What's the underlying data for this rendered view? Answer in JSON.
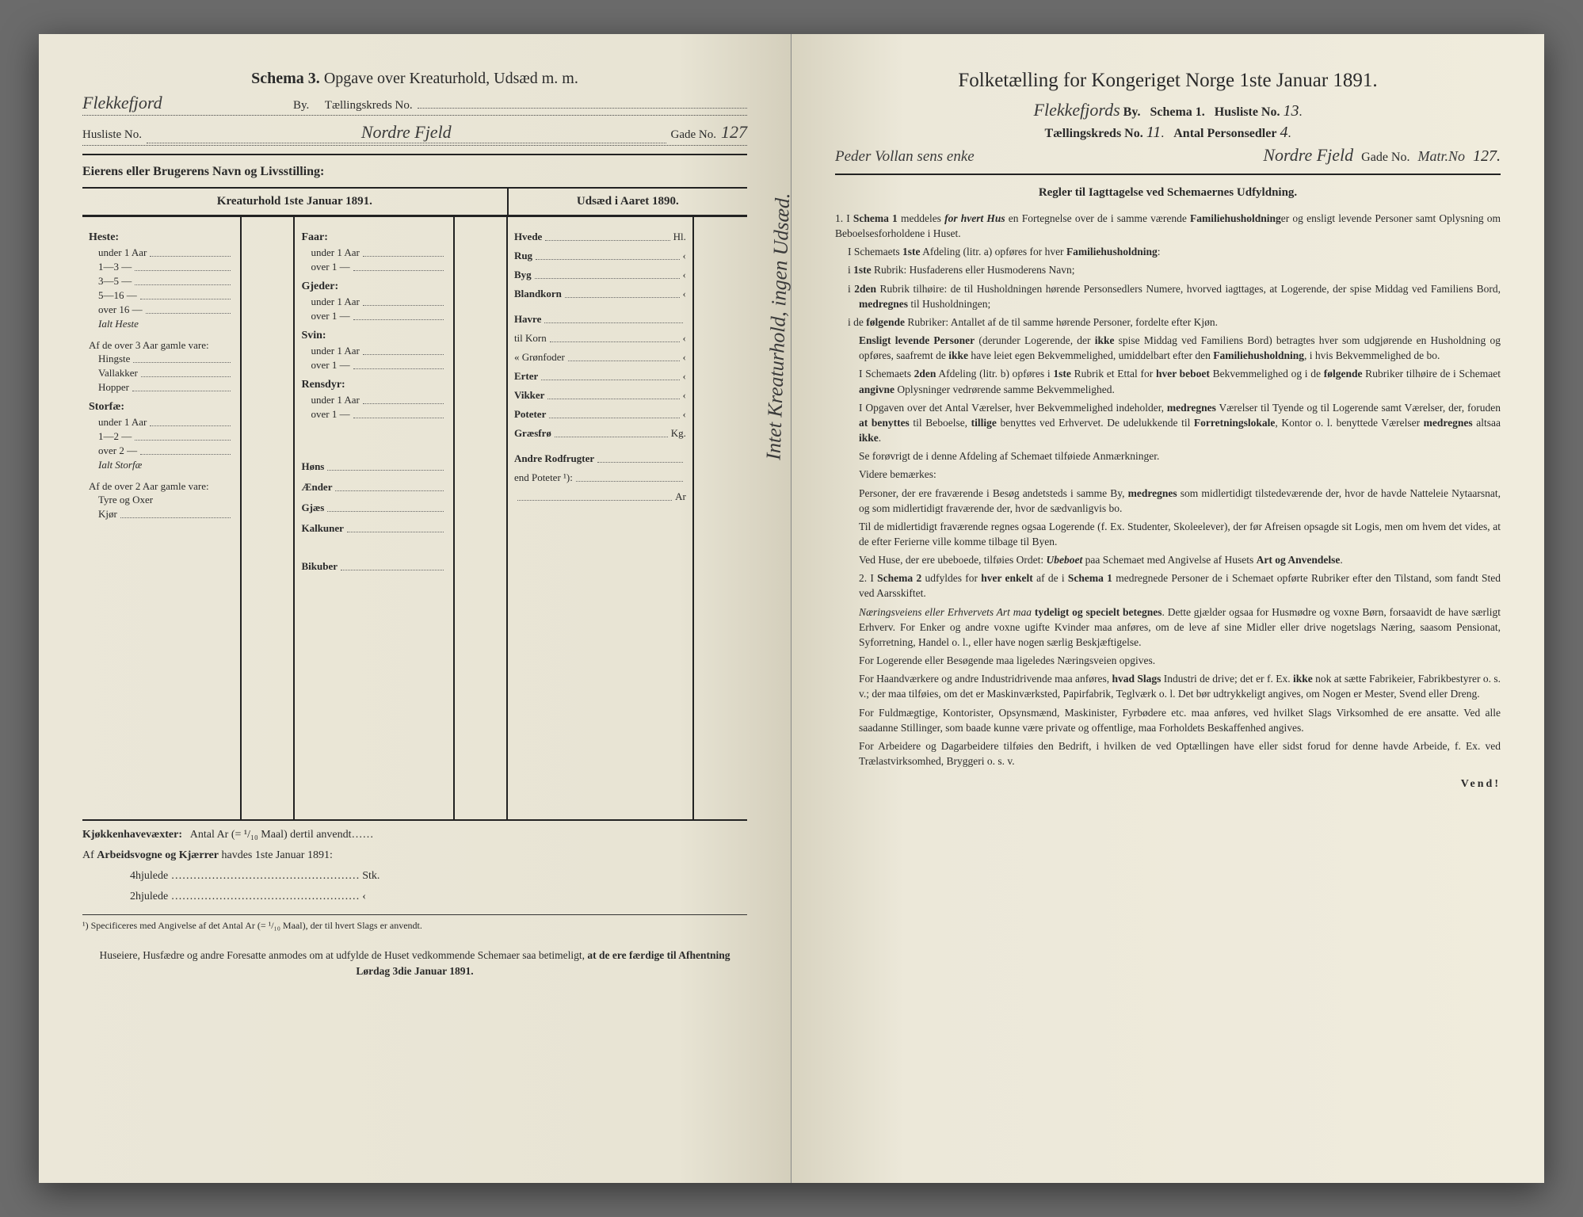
{
  "left": {
    "schemaLabel": "Schema 3.",
    "schemaTitle": "Opgave over Kreaturhold, Udsæd m. m.",
    "hwCity": "Flekkefjord",
    "byLabel": "By.",
    "tkLabel": "Tællingskreds No.",
    "huslisteLabel": "Husliste No.",
    "hwStreet": "Nordre Fjeld",
    "gadeLabel": "Gade No.",
    "hwGadeNo": "127",
    "ownerLabel": "Eierens eller Brugerens Navn og Livsstilling:",
    "headerKreatur": "Kreaturhold 1ste Januar 1891.",
    "headerUdsaed": "Udsæd i Aaret 1890.",
    "verticalNote": "Intet Kreaturhold, ingen Udsæd.",
    "heste": {
      "title": "Heste:",
      "rows": [
        "under 1 Aar",
        "1—3 —",
        "3—5 —",
        "5—16 —",
        "over 16 —"
      ],
      "ialt": "Ialt Heste",
      "subTitle": "Af de over 3 Aar gamle vare:",
      "subRows": [
        "Hingste",
        "Vallakker",
        "Hopper"
      ]
    },
    "storfae": {
      "title": "Storfæ:",
      "rows": [
        "under 1 Aar",
        "1—2 —",
        "over 2 —"
      ],
      "ialt": "Ialt Storfæ",
      "subTitle": "Af de over 2 Aar gamle vare:",
      "subRows": [
        "Tyre og Oxer",
        "Kjør"
      ]
    },
    "faar": {
      "title": "Faar:",
      "rows": [
        "under 1 Aar",
        "over 1 —"
      ]
    },
    "gjeder": {
      "title": "Gjeder:",
      "rows": [
        "under 1 Aar",
        "over 1 —"
      ]
    },
    "svin": {
      "title": "Svin:",
      "rows": [
        "under 1 Aar",
        "over 1 —"
      ]
    },
    "rensdyr": {
      "title": "Rensdyr:",
      "rows": [
        "under 1 Aar",
        "over 1 —"
      ]
    },
    "poultry": [
      "Høns",
      "Ænder",
      "Gjæs",
      "Kalkuner",
      "",
      "Bikuber"
    ],
    "udsaed": {
      "rows": [
        {
          "label": "Hvede",
          "unit": "Hl."
        },
        {
          "label": "Rug",
          "unit": "‹"
        },
        {
          "label": "Byg",
          "unit": "‹"
        },
        {
          "label": "Blandkorn",
          "unit": "‹"
        },
        {
          "label": "Havre",
          "unit": ""
        },
        {
          "label": "  til Korn",
          "unit": "‹"
        },
        {
          "label": "« Grønfoder",
          "unit": "‹"
        },
        {
          "label": "Erter",
          "unit": "‹"
        },
        {
          "label": "Vikker",
          "unit": "‹"
        },
        {
          "label": "Poteter",
          "unit": "‹"
        },
        {
          "label": "Græsfrø",
          "unit": "Kg."
        },
        {
          "label": "Andre Rodfrugter",
          "unit": ""
        },
        {
          "label": "  end Poteter ¹):",
          "unit": ""
        },
        {
          "label": "",
          "unit": "Ar"
        }
      ]
    },
    "kjokkenLine": "Kjøkkenhavevæxter:   Antal Ar (= ¹/₁₀ Maal) dertil anvendt……",
    "arbeidsLine": "Af Arbeidsvogne og Kjærrer havdes 1ste Januar 1891:",
    "wheel4": "4hjulede  ……………………………………………  Stk.",
    "wheel2": "2hjulede  ……………………………………………   ‹",
    "footnote": "¹) Specificeres med Angivelse af det Antal Ar (= ¹/₁₀ Maal), der til hvert Slags er anvendt.",
    "instruction1": "Huseiere, Husfædre og andre Foresatte anmodes om at udfylde de Huset vedkommende Schemaer saa betimeligt,",
    "instruction2": "at de ere færdige til Afhentning Lørdag 3die Januar 1891."
  },
  "right": {
    "title": "Folketælling for Kongeriget Norge 1ste Januar 1891.",
    "hwCity": "Flekkefjords",
    "byLabel": "By.",
    "schemaLabel": "Schema 1.",
    "huslisteLabel": "Husliste No.",
    "hwHusliste": "13",
    "tkLabel": "Tællingskreds No.",
    "hwTk": "11",
    "antalLabel": "Antal Personsedler",
    "hwAntal": "4",
    "hwOwner": "Peder Vollan sens enke",
    "hwStreet": "Nordre Fjeld",
    "gadeLabel": "Gade No.",
    "hwGadeExtra": "Matr.No",
    "hwGadeNo": "127.",
    "rulesTitle": "Regler til Iagttagelse ved Schemaernes Udfyldning.",
    "rules": [
      "1. I Schema 1 meddeles for hvert Hus en Fortegnelse over de i samme værende Familiehusholdninger og ensligt levende Personer samt Oplysning om Beboelsesforholdene i Huset.",
      "I Schemaets 1ste Afdeling (litr. a) opføres for hver Familiehusholdning:",
      "i 1ste Rubrik: Husfaderens eller Husmoderens Navn;",
      "i 2den Rubrik tilhøire: de til Husholdningen hørende Personsedlers Numere, hvorved iagttages, at Logerende, der spise Middag ved Familiens Bord, medregnes til Husholdningen;",
      "i de følgende Rubriker: Antallet af de til samme hørende Personer, fordelte efter Kjøn.",
      "Ensligt levende Personer (derunder Logerende, der ikke spise Middag ved Familiens Bord) betragtes hver som udgjørende en Husholdning og opføres, saafremt de ikke have leiet egen Bekvemmelighed, umiddelbart efter den Familiehusholdning, i hvis Bekvemmelighed de bo.",
      "I Schemaets 2den Afdeling (litr. b) opføres i 1ste Rubrik et Ettal for hver beboet Bekvemmelighed og i de følgende Rubriker tilhøire de i Schemaet angivne Oplysninger vedrørende samme Bekvemmelighed.",
      "I Opgaven over det Antal Værelser, hver Bekvemmelighed indeholder, medregnes Værelser til Tyende og til Logerende samt Værelser, der, foruden at benyttes til Beboelse, tillige benyttes ved Erhvervet. De udelukkende til Forretningslokale, Kontor o. l. benyttede Værelser medregnes altsaa ikke.",
      "Se forøvrigt de i denne Afdeling af Schemaet tilføiede Anmærkninger.",
      "Videre bemærkes:",
      "Personer, der ere fraværende i Besøg andetsteds i samme By, medregnes som midlertidigt tilstedeværende der, hvor de havde Natteleie Nytaarsnat, og som midlertidigt fraværende der, hvor de sædvanligvis bo.",
      "Til de midlertidigt fraværende regnes ogsaa Logerende (f. Ex. Studenter, Skoleelever), der før Afreisen opsagde sit Logis, men om hvem det vides, at de efter Ferierne ville komme tilbage til Byen.",
      "Ved Huse, der ere ubeboede, tilføies Ordet: Ubeboet paa Schemaet med Angivelse af Husets Art og Anvendelse.",
      "2. I Schema 2 udfyldes for hver enkelt af de i Schema 1 medregnede Personer de i Schemaet opførte Rubriker efter den Tilstand, som fandt Sted ved Aarsskiftet.",
      "Næringsveiens eller Erhvervets Art maa tydeligt og specielt betegnes. Dette gjælder ogsaa for Husmødre og voxne Børn, forsaavidt de have særligt Erhverv. For Enker og andre voxne ugifte Kvinder maa anføres, om de leve af sine Midler eller drive nogetslags Næring, saasom Pensionat, Syforretning, Handel o. l., eller have nogen særlig Beskjæftigelse.",
      "For Logerende eller Besøgende maa ligeledes Næringsveien opgives.",
      "For Haandværkere og andre Industridrivende maa anføres, hvad Slags Industri de drive; det er f. Ex. ikke nok at sætte Fabrikeier, Fabrikbestyrer o. s. v.; der maa tilføies, om det er Maskinværksted, Papirfabrik, Teglværk o. l. Det bør udtrykkeligt angives, om Nogen er Mester, Svend eller Dreng.",
      "For Fuldmægtige, Kontorister, Opsynsmænd, Maskinister, Fyrbødere etc. maa anføres, ved hvilket Slags Virksomhed de ere ansatte. Ved alle saadanne Stillinger, som baade kunne være private og offentlige, maa Forholdets Beskaffenhed angives.",
      "For Arbeidere og Dagarbeidere tilføies den Bedrift, i hvilken de ved Optællingen have eller sidst forud for denne havde Arbeide, f. Ex. ved Trælastvirksomhed, Bryggeri o. s. v."
    ],
    "vend": "Vend!"
  }
}
